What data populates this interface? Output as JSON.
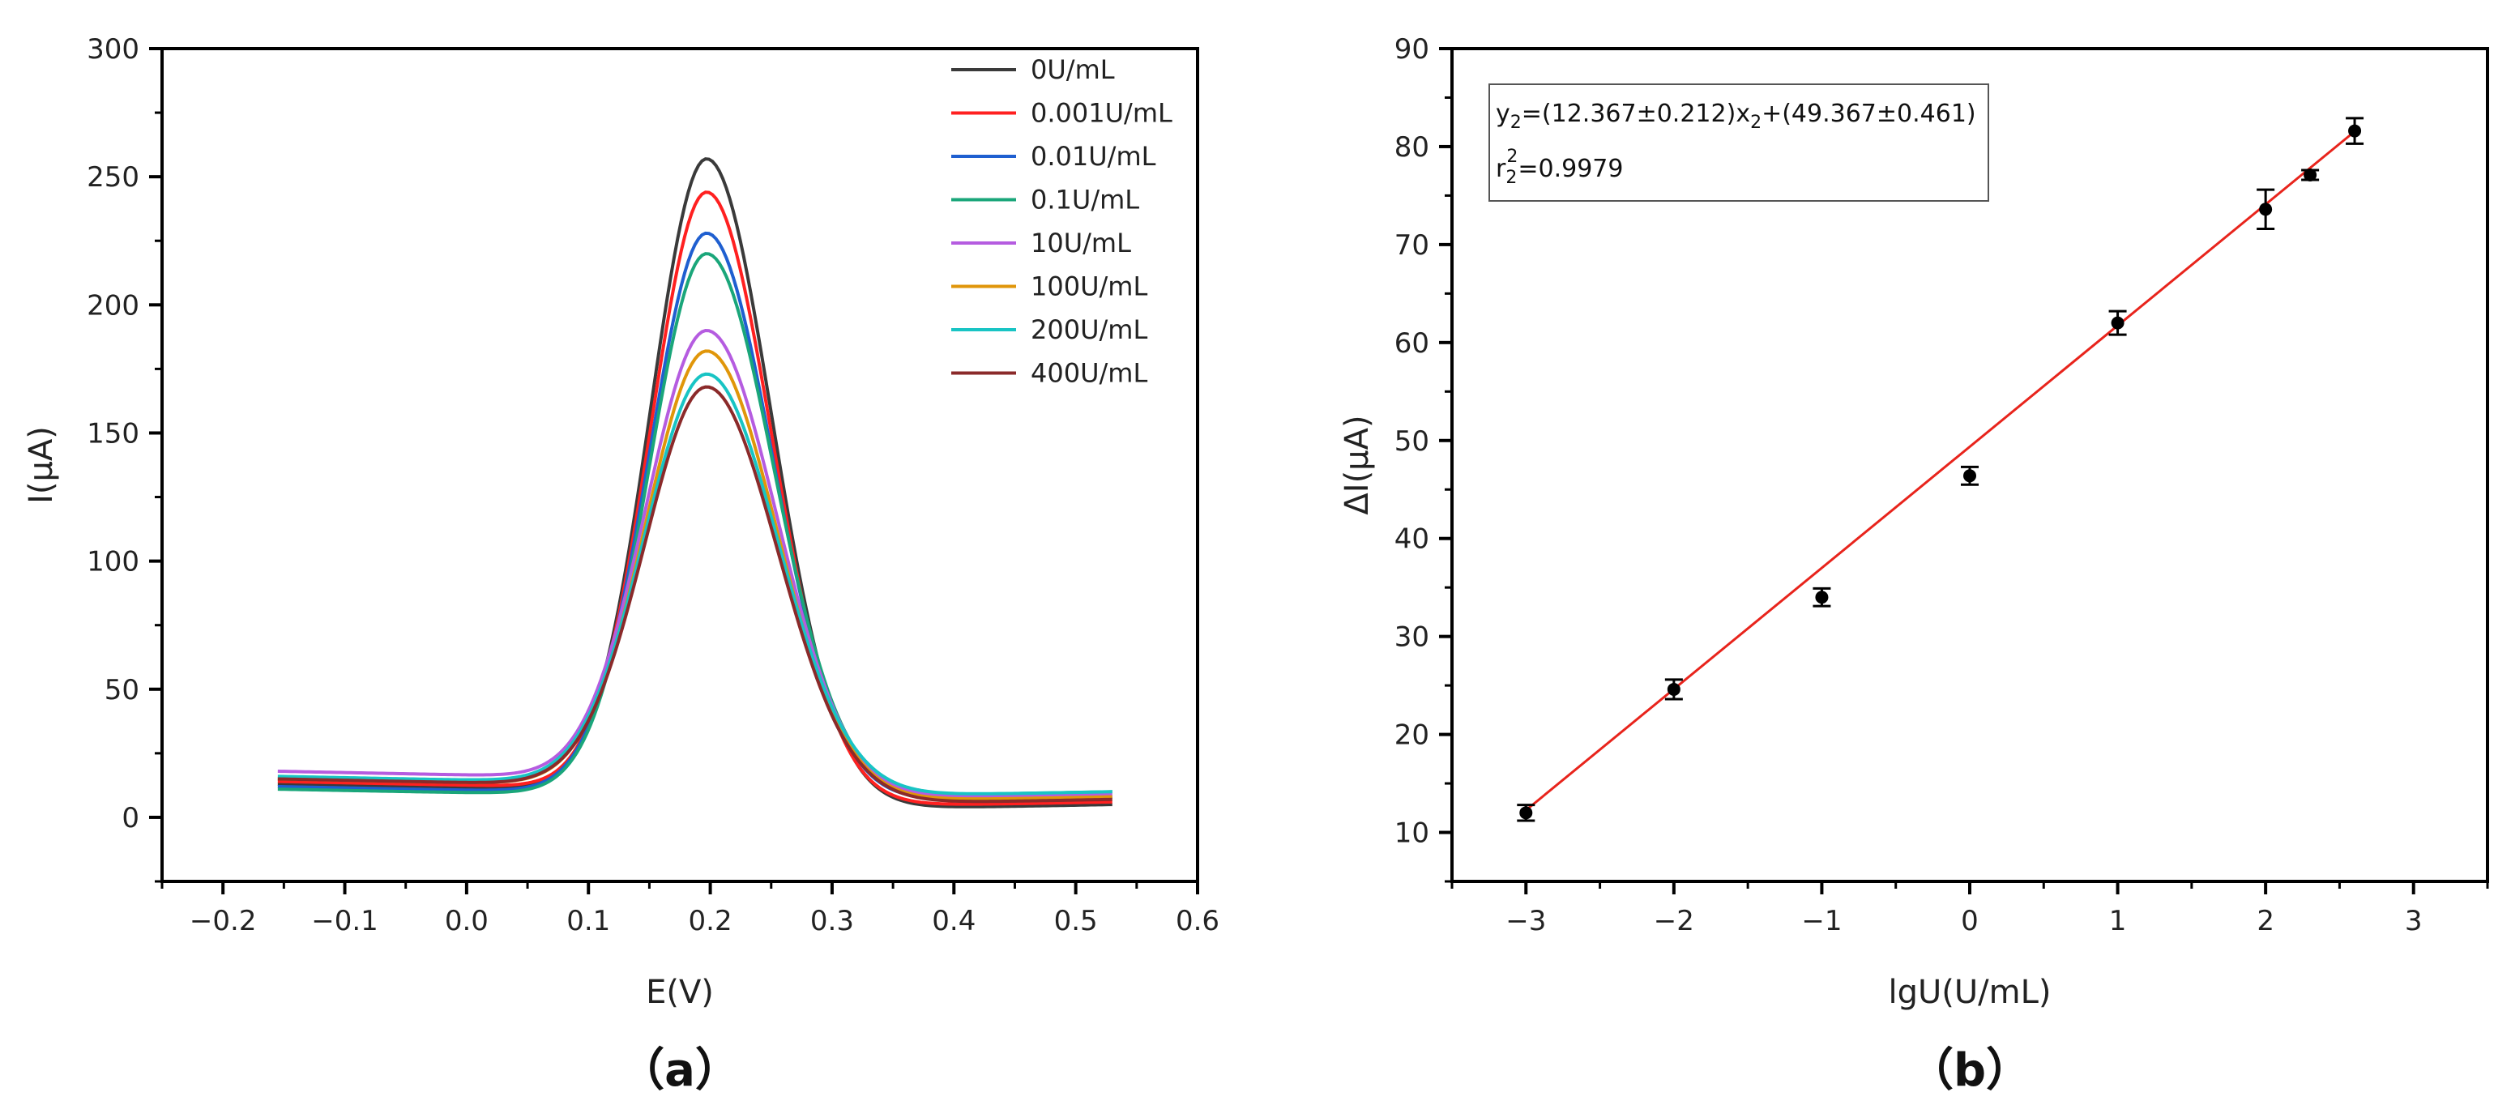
{
  "chart_data": [
    {
      "type": "line",
      "panel_label": "（a）",
      "title": "",
      "xlabel": "E(V)",
      "ylabel": "I(μA)",
      "xlim": [
        -0.25,
        0.6
      ],
      "ylim": [
        -25,
        300
      ],
      "xticks": [
        -0.2,
        -0.1,
        0.0,
        0.1,
        0.2,
        0.3,
        0.4,
        0.5,
        0.6
      ],
      "xtick_labels": [
        "−0.2",
        "−0.1",
        "0.0",
        "0.1",
        "0.2",
        "0.3",
        "0.4",
        "0.5",
        "0.6"
      ],
      "yticks": [
        0,
        50,
        100,
        150,
        200,
        250,
        300
      ],
      "ytick_labels": [
        "0",
        "50",
        "100",
        "150",
        "200",
        "250",
        "300"
      ],
      "legend_position": "top-right",
      "x_start": -0.155,
      "x_end": 0.53,
      "peak_center": 0.197,
      "series": [
        {
          "name": "0U/mL",
          "color": "#3a3a3a",
          "peak": 259,
          "base_left": 13,
          "base_right": 5,
          "left_width": 0.046,
          "right_width": 0.053
        },
        {
          "name": "0.001U/mL",
          "color": "#ff2020",
          "peak": 246,
          "base_left": 14,
          "base_right": 6,
          "left_width": 0.046,
          "right_width": 0.053
        },
        {
          "name": "0.01U/mL",
          "color": "#1f5fd0",
          "peak": 230,
          "base_left": 12,
          "base_right": 8,
          "left_width": 0.047,
          "right_width": 0.054
        },
        {
          "name": "0.1U/mL",
          "color": "#1aa67a",
          "peak": 222,
          "base_left": 11,
          "base_right": 10,
          "left_width": 0.047,
          "right_width": 0.055
        },
        {
          "name": "10U/mL",
          "color": "#b55ce0",
          "peak": 192,
          "base_left": 18,
          "base_right": 9,
          "left_width": 0.05,
          "right_width": 0.057
        },
        {
          "name": "100U/mL",
          "color": "#e0960a",
          "peak": 184,
          "base_left": 15,
          "base_right": 8,
          "left_width": 0.05,
          "right_width": 0.057
        },
        {
          "name": "200U/mL",
          "color": "#18c4c4",
          "peak": 175,
          "base_left": 16,
          "base_right": 10,
          "left_width": 0.051,
          "right_width": 0.058
        },
        {
          "name": "400U/mL",
          "color": "#8b2a2a",
          "peak": 170,
          "base_left": 15,
          "base_right": 7,
          "left_width": 0.051,
          "right_width": 0.058
        }
      ]
    },
    {
      "type": "scatter",
      "panel_label": "（b）",
      "title": "",
      "xlabel": "lgU(U/mL)",
      "ylabel": "ΔI(μA)",
      "xlim": [
        -3.5,
        3.5
      ],
      "ylim": [
        5,
        90
      ],
      "xticks": [
        -3,
        -2,
        -1,
        0,
        1,
        2,
        3
      ],
      "xtick_labels": [
        "−3",
        "−2",
        "−1",
        "0",
        "1",
        "2",
        "3"
      ],
      "yticks": [
        10,
        20,
        30,
        40,
        50,
        60,
        70,
        80,
        90
      ],
      "ytick_labels": [
        "10",
        "20",
        "30",
        "40",
        "50",
        "60",
        "70",
        "80",
        "90"
      ],
      "points": [
        {
          "x": -3,
          "y": 12.0,
          "err": 0.8
        },
        {
          "x": -2,
          "y": 24.6,
          "err": 1.0
        },
        {
          "x": -1,
          "y": 34.0,
          "err": 0.9
        },
        {
          "x": 0,
          "y": 46.4,
          "err": 0.9
        },
        {
          "x": 1,
          "y": 62.0,
          "err": 1.2
        },
        {
          "x": 2,
          "y": 73.6,
          "err": 2.0
        },
        {
          "x": 2.301,
          "y": 77.1,
          "err": 0.5
        },
        {
          "x": 2.602,
          "y": 81.6,
          "err": 1.3
        }
      ],
      "fit": {
        "slope": 12.367,
        "intercept": 49.367,
        "x_range": [
          -3,
          2.602
        ],
        "color": "#e8241c"
      },
      "equation": {
        "y_var": "y",
        "x_var": "x",
        "subscript": "2",
        "superscript": "2",
        "eq_mid": "=(12.367±0.212)",
        "eq_end": "+(49.367±0.461)",
        "r_var": "r",
        "r_value": "=0.9979"
      }
    }
  ]
}
